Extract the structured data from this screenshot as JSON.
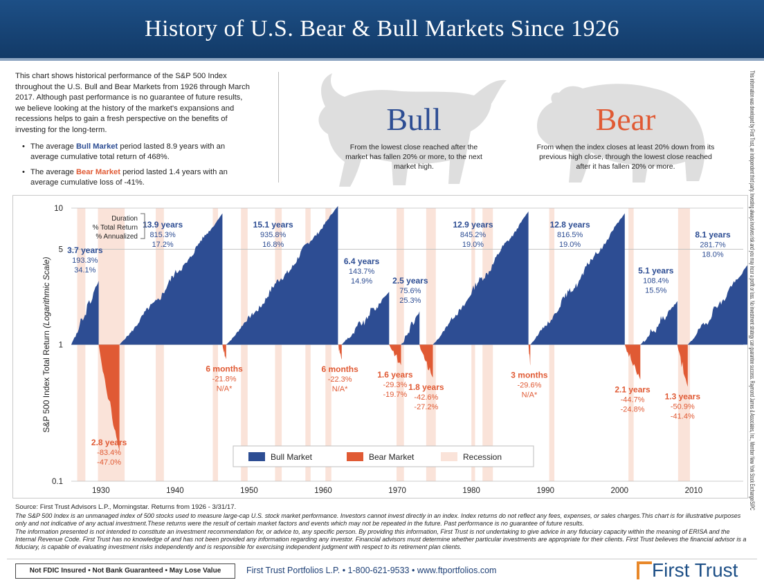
{
  "header": {
    "title": "History of U.S. Bear & Bull Markets Since 1926"
  },
  "intro": {
    "paragraph": "This chart shows historical performance of the S&P 500 Index throughout the U.S. Bull and Bear Markets from 1926 through March 2017. Although past performance is no guarantee of future results, we believe looking at the history of the market's expansions and recessions helps to gain a fresh perspective on the benefits of investing for the long-term.",
    "bullet1_pre": "The average ",
    "bullet1_key": "Bull Market",
    "bullet1_post": " period lasted 8.9 years with an average cumulative total return of 468%.",
    "bullet2_pre": "The average ",
    "bullet2_key": "Bear Market",
    "bullet2_post": " period lasted 1.4 years with an average cumulative loss of -41%."
  },
  "bull": {
    "title": "Bull",
    "definition": "From the lowest close reached after the market has fallen 20% or more, to the next market high."
  },
  "bear": {
    "title": "Bear",
    "definition": "From when the index closes at least 20% down from its previous high close, through the lowest close reached after it has fallen 20% or more."
  },
  "colors": {
    "bull": "#2d4d93",
    "bear": "#e05a34",
    "recession": "#fae3d9",
    "header": "#1d4f86"
  },
  "chart_data": {
    "type": "area",
    "ylabel": "S&P 500 Index Total Return",
    "ylabel_note": "(Logarithmic Scale)",
    "y_scale": "log",
    "ylim": [
      0.1,
      10
    ],
    "y_ticks": [
      {
        "value": 0.1,
        "label": "0.1"
      },
      {
        "value": 1,
        "label": "1"
      },
      {
        "value": 5,
        "label": "5"
      },
      {
        "value": 10,
        "label": "10"
      }
    ],
    "xlim": [
      1926,
      2017.25
    ],
    "x_ticks": [
      1930,
      1940,
      1950,
      1960,
      1970,
      1980,
      1990,
      2000,
      2010
    ],
    "key_labels": [
      "Duration",
      "% Total Return",
      "% Annualized"
    ],
    "legend": {
      "position": "bottom-center",
      "items": [
        "Bull Market",
        "Bear Market",
        "Recession"
      ]
    },
    "recessions": [
      [
        1926.8,
        1927.9
      ],
      [
        1929.6,
        1933.2
      ],
      [
        1937.4,
        1938.5
      ],
      [
        1945.1,
        1945.8
      ],
      [
        1948.9,
        1949.8
      ],
      [
        1953.5,
        1954.4
      ],
      [
        1957.6,
        1958.3
      ],
      [
        1960.3,
        1961.1
      ],
      [
        1969.9,
        1970.9
      ],
      [
        1973.9,
        1975.2
      ],
      [
        1980.0,
        1980.5
      ],
      [
        1981.5,
        1982.9
      ],
      [
        1990.5,
        1991.2
      ],
      [
        2001.2,
        2001.9
      ],
      [
        2007.9,
        2009.5
      ]
    ],
    "periods": [
      {
        "type": "bull",
        "start": 1926.0,
        "end": 1929.7,
        "peak": 2.933,
        "duration": "3.7 years",
        "total": "193.3%",
        "annualized": "34.1%"
      },
      {
        "type": "bear",
        "start": 1929.7,
        "end": 1932.5,
        "trough": 0.166,
        "duration": "2.8 years",
        "total": "-83.4%",
        "annualized": "-47.0%"
      },
      {
        "type": "bull",
        "start": 1932.5,
        "end": 1946.4,
        "peak": 9.153,
        "duration": "13.9 years",
        "total": "815.3%",
        "annualized": "17.2%"
      },
      {
        "type": "bear",
        "start": 1946.4,
        "end": 1946.9,
        "trough": 0.782,
        "duration": "6 months",
        "total": "-21.8%",
        "annualized": "N/A*"
      },
      {
        "type": "bull",
        "start": 1946.9,
        "end": 1962.0,
        "peak": 10.358,
        "duration": "15.1 years",
        "total": "935.8%",
        "annualized": "16.8%"
      },
      {
        "type": "bear",
        "start": 1962.0,
        "end": 1962.5,
        "trough": 0.777,
        "duration": "6 months",
        "total": "-22.3%",
        "annualized": "N/A*"
      },
      {
        "type": "bull",
        "start": 1962.5,
        "end": 1968.9,
        "peak": 2.437,
        "duration": "6.4 years",
        "total": "143.7%",
        "annualized": "14.9%"
      },
      {
        "type": "bear",
        "start": 1968.9,
        "end": 1970.5,
        "trough": 0.707,
        "duration": "1.6 years",
        "total": "-29.3%",
        "annualized": "-19.7%"
      },
      {
        "type": "bull",
        "start": 1970.5,
        "end": 1973.0,
        "peak": 1.756,
        "duration": "2.5 years",
        "total": "75.6%",
        "annualized": "25.3%"
      },
      {
        "type": "bear",
        "start": 1973.0,
        "end": 1974.8,
        "trough": 0.574,
        "duration": "1.8 years",
        "total": "-42.6%",
        "annualized": "-27.2%"
      },
      {
        "type": "bull",
        "start": 1974.8,
        "end": 1987.7,
        "peak": 9.452,
        "duration": "12.9 years",
        "total": "845.2%",
        "annualized": "19.0%"
      },
      {
        "type": "bear",
        "start": 1987.7,
        "end": 1987.95,
        "trough": 0.704,
        "duration": "3 months",
        "total": "-29.6%",
        "annualized": "N/A*"
      },
      {
        "type": "bull",
        "start": 1987.95,
        "end": 2000.7,
        "peak": 9.165,
        "duration": "12.8 years",
        "total": "816.5%",
        "annualized": "19.0%"
      },
      {
        "type": "bear",
        "start": 2000.7,
        "end": 2002.8,
        "trough": 0.553,
        "duration": "2.1 years",
        "total": "-44.7%",
        "annualized": "-24.8%"
      },
      {
        "type": "bull",
        "start": 2002.8,
        "end": 2007.8,
        "peak": 2.084,
        "duration": "5.1 years",
        "total": "108.4%",
        "annualized": "15.5%"
      },
      {
        "type": "bear",
        "start": 2007.8,
        "end": 2009.2,
        "trough": 0.491,
        "duration": "1.3 years",
        "total": "-50.9%",
        "annualized": "-41.4%"
      },
      {
        "type": "bull",
        "start": 2009.2,
        "end": 2017.25,
        "peak": 3.817,
        "duration": "8.1 years",
        "total": "281.7%",
        "annualized": "18.0%"
      }
    ]
  },
  "side_disclaimer": "This information was developed by First Trust, an independent third party. Investing always involves risk and you may incur a profit or loss. No investment strategy can guarantee success. Raymond James & Associates, Inc., Member New York Stock Exchange/SIPC",
  "source": {
    "line1": "Source: First Trust Advisors L.P., Morningstar. Returns from 1926 - 3/31/17.",
    "line2": "The S&P 500 Index is an unmanaged index of 500 stocks used to measure large-cap U.S. stock market performance. Investors cannot invest directly in an index. Index returns do not reflect any fees, expenses, or sales charges.This chart is for illustrative purposes only and not indicative of any actual investment.These returns were the result of certain market factors and events which may not be repeated in the future. Past performance is no guarantee of future results.",
    "line3": "The information presented is not intended to constitute an investment recommendation for, or advice to, any specific person. By providing this information, First Trust is not undertaking to give advice in any fiduciary capacity within the meaning of ERISA and the Internal Revenue Code. First Trust has no knowledge of and has not been provided any information regarding any investor. Financial advisors must determine whether particular investments are appropriate for their clients. First Trust believes the financial advisor is a fiduciary, is capable of evaluating investment risks independently and is responsible for exercising independent judgment with respect to its retirement plan clients."
  },
  "footer": {
    "badge": "Not FDIC Insured • Not Bank Guaranteed • May Lose Value",
    "contact": "First Trust Portfolios L.P. • 1-800-621-9533 • www.ftportfolios.com",
    "logo": "First Trust"
  }
}
